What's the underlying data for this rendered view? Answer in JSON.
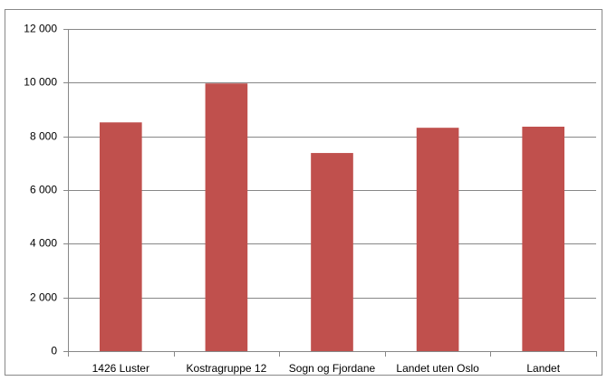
{
  "chart_data": {
    "type": "bar",
    "categories": [
      "1426 Luster",
      "Kostragruppe 12",
      "Sogn og Fjordane",
      "Landet uten Oslo",
      "Landet"
    ],
    "values": [
      8520,
      9970,
      7380,
      8320,
      8360
    ],
    "color": "#c0504d",
    "ylim": [
      0,
      12000
    ],
    "yticks": [
      0,
      {
        "value": 2000,
        "label": "2 000"
      },
      {
        "value": 4000,
        "label": "4 000"
      },
      {
        "value": 6000,
        "label": "6 000"
      },
      {
        "value": 8000,
        "label": "8 000"
      },
      {
        "value": 10000,
        "label": "10 000"
      },
      {
        "value": 12000,
        "label": "12 000"
      }
    ],
    "grid": true
  }
}
